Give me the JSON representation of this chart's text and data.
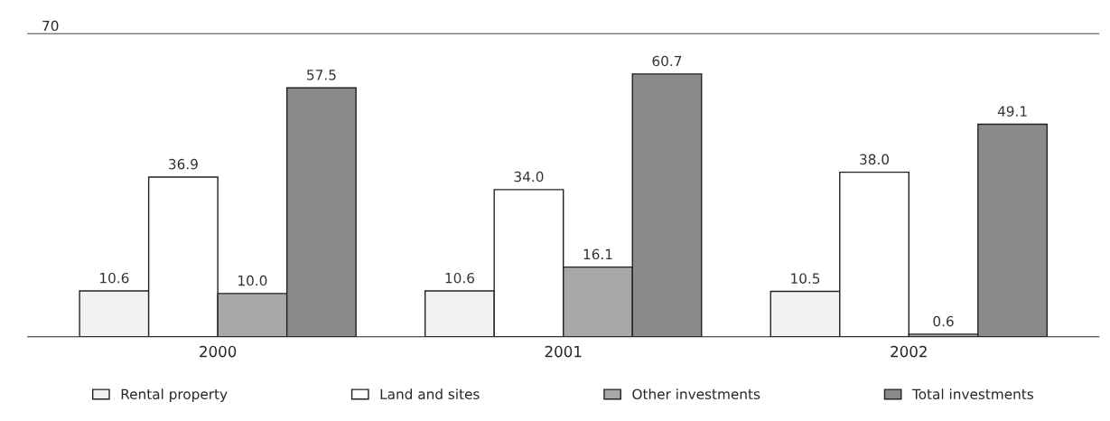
{
  "chart_data": {
    "type": "bar",
    "categories": [
      "2000",
      "2001",
      "2002"
    ],
    "series": [
      {
        "name": "Rental property",
        "color": "#f2f2f2",
        "values": [
          10.6,
          10.6,
          10.5
        ],
        "value_labels": [
          "10.6",
          "10.6",
          "10.5"
        ]
      },
      {
        "name": "Land and sites",
        "color": "#ffffff",
        "values": [
          36.9,
          34.0,
          38.0
        ],
        "value_labels": [
          "36.9",
          "34.0",
          "38.0"
        ]
      },
      {
        "name": "Other investments",
        "color": "#a8a8a8",
        "values": [
          10.0,
          16.1,
          0.6
        ],
        "value_labels": [
          "10.0",
          "16.1",
          "0.6"
        ]
      },
      {
        "name": "Total investments",
        "color": "#8a8a8a",
        "values": [
          57.5,
          60.7,
          49.1
        ],
        "value_labels": [
          "57.5",
          "60.7",
          "49.1"
        ]
      }
    ],
    "ylim": [
      0,
      70
    ],
    "yticks": [
      70
    ],
    "legend": "bottom"
  }
}
